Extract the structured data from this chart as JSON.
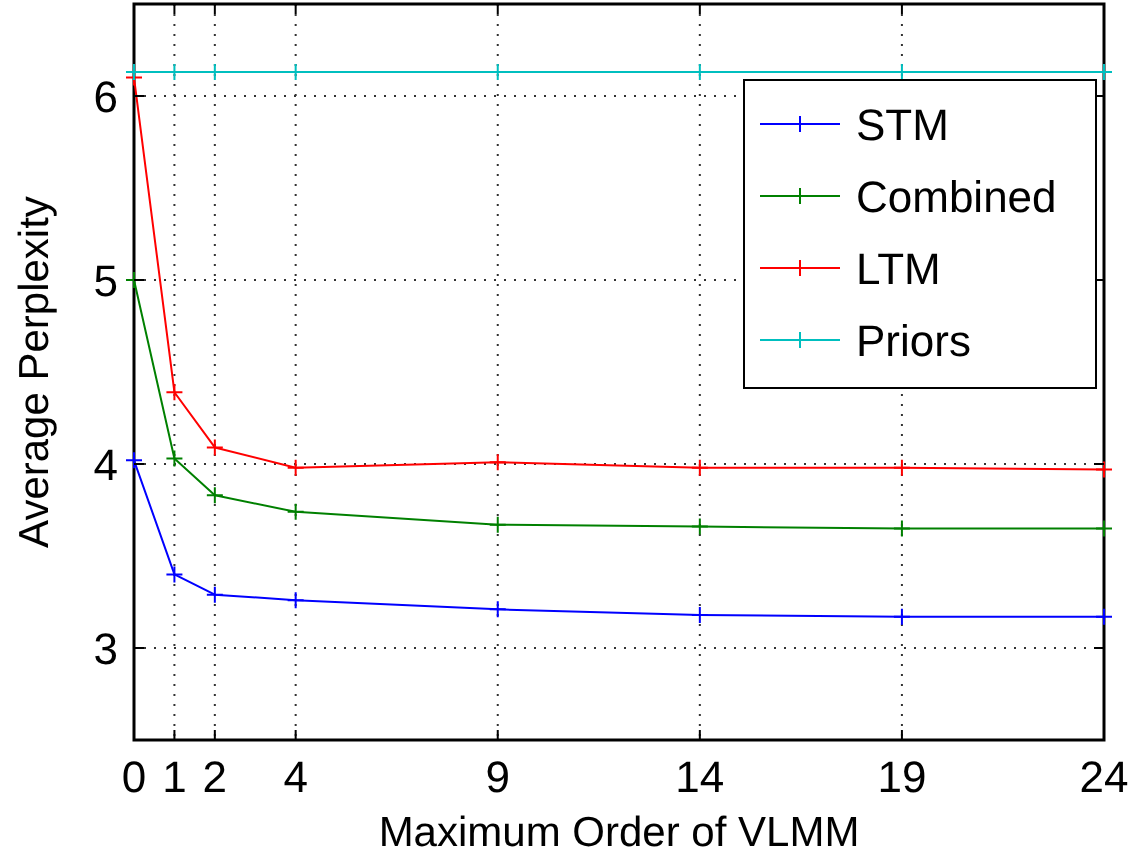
{
  "chart_data": {
    "type": "line",
    "xlabel": "Maximum Order of VLMM",
    "ylabel": "Average Perplexity",
    "x": [
      0,
      1,
      2,
      4,
      9,
      14,
      19,
      24
    ],
    "series": [
      {
        "name": "STM",
        "color": "#0000ff",
        "values": [
          4.02,
          3.4,
          3.29,
          3.26,
          3.21,
          3.18,
          3.17,
          3.17
        ]
      },
      {
        "name": "Combined",
        "color": "#008000",
        "values": [
          5.0,
          4.03,
          3.83,
          3.74,
          3.67,
          3.66,
          3.65,
          3.65
        ]
      },
      {
        "name": "LTM",
        "color": "#ff0000",
        "values": [
          6.1,
          4.39,
          4.09,
          3.98,
          4.01,
          3.98,
          3.98,
          3.97
        ]
      },
      {
        "name": "Priors",
        "color": "#00bfbf",
        "values": [
          6.13,
          6.13,
          6.13,
          6.13,
          6.13,
          6.13,
          6.13,
          6.13
        ]
      }
    ],
    "xlim": [
      0,
      24
    ],
    "xticks": [
      0,
      1,
      2,
      4,
      9,
      14,
      19,
      24
    ],
    "ylim": [
      2.5,
      6.5
    ],
    "yticks": [
      3,
      4,
      5,
      6
    ],
    "grid": true,
    "legend": "top right",
    "marker": "cross",
    "line_style": "solid"
  }
}
